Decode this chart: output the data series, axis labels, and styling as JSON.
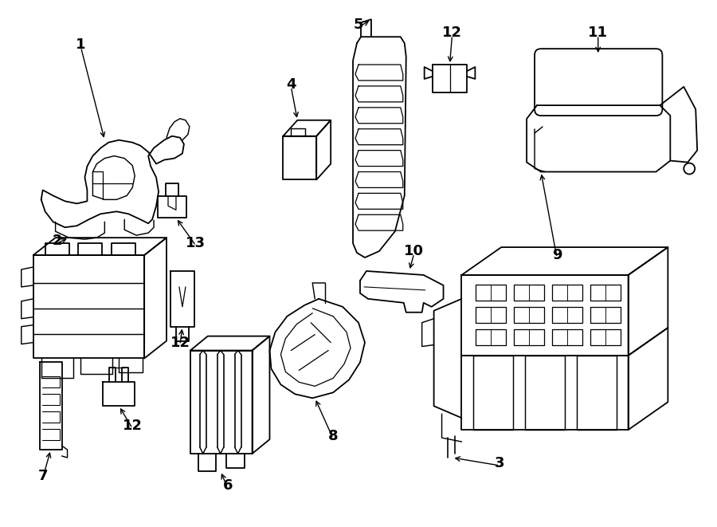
{
  "background_color": "#ffffff",
  "line_color": "#000000",
  "line_width": 1.3,
  "fig_width": 9.0,
  "fig_height": 6.61,
  "dpi": 100
}
